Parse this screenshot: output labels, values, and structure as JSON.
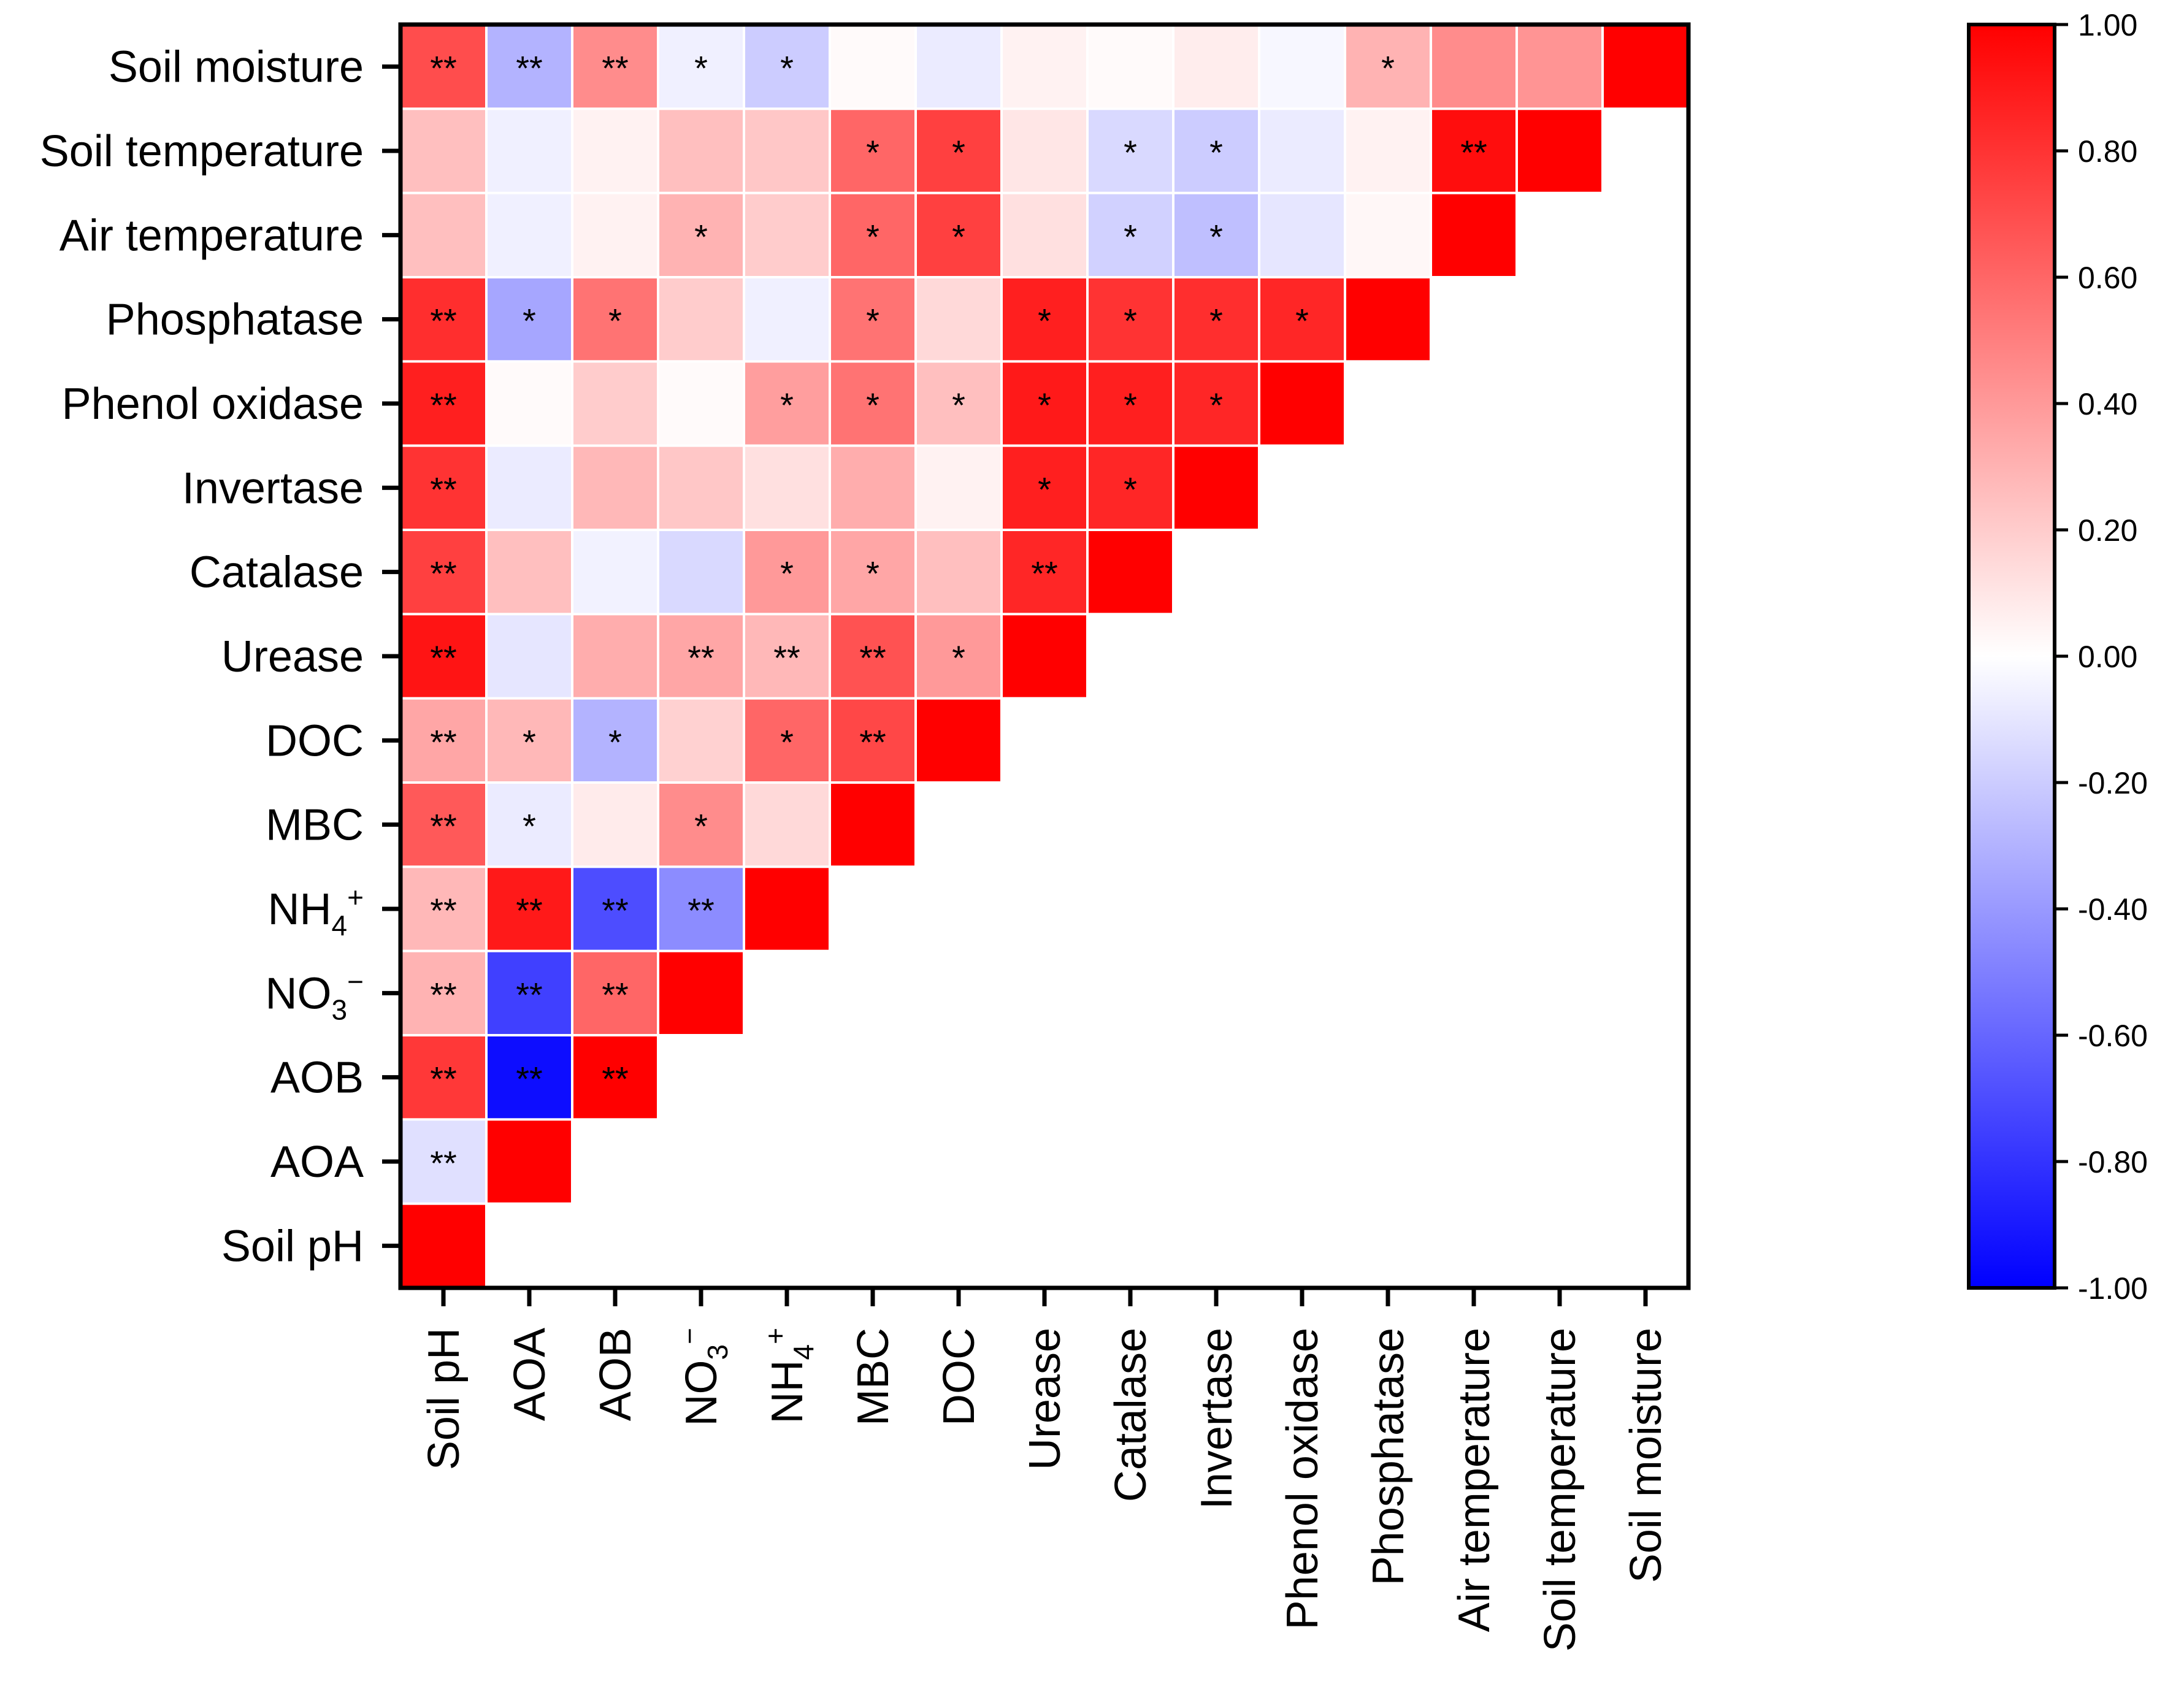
{
  "chart_data": {
    "type": "heatmap",
    "title": "",
    "xlabel": "",
    "ylabel": "",
    "variables": [
      {
        "main": "Soil pH",
        "sub": "",
        "sup": ""
      },
      {
        "main": "AOA",
        "sub": "",
        "sup": ""
      },
      {
        "main": "AOB",
        "sub": "",
        "sup": ""
      },
      {
        "main": "NO",
        "sub": "3",
        "sup": "−"
      },
      {
        "main": "NH",
        "sub": "4",
        "sup": "+"
      },
      {
        "main": "MBC",
        "sub": "",
        "sup": ""
      },
      {
        "main": "DOC",
        "sub": "",
        "sup": ""
      },
      {
        "main": "Urease",
        "sub": "",
        "sup": ""
      },
      {
        "main": "Catalase",
        "sub": "",
        "sup": ""
      },
      {
        "main": "Invertase",
        "sub": "",
        "sup": ""
      },
      {
        "main": "Phenol oxidase",
        "sub": "",
        "sup": ""
      },
      {
        "main": "Phosphatase",
        "sub": "",
        "sup": ""
      },
      {
        "main": "Air temperature",
        "sub": "",
        "sup": ""
      },
      {
        "main": "Soil temperature",
        "sub": "",
        "sup": ""
      },
      {
        "main": "Soil moisture",
        "sub": "",
        "sup": ""
      }
    ],
    "rows": [
      {
        "values": [
          1.0
        ]
      },
      {
        "values": [
          -0.12,
          1.0
        ],
        "sig": [
          "**",
          ""
        ]
      },
      {
        "values": [
          0.78,
          -0.95,
          1.0
        ],
        "sig": [
          "**",
          "**",
          "**"
        ]
      },
      {
        "values": [
          0.3,
          -0.75,
          0.6,
          1.0
        ],
        "sig": [
          "**",
          "**",
          "**",
          ""
        ]
      },
      {
        "values": [
          0.28,
          0.9,
          -0.7,
          -0.45,
          1.0
        ],
        "sig": [
          "**",
          "**",
          "**",
          "**",
          ""
        ]
      },
      {
        "values": [
          0.65,
          -0.08,
          0.08,
          0.45,
          0.15,
          1.0
        ],
        "sig": [
          "**",
          "*",
          "",
          "*",
          "",
          ""
        ]
      },
      {
        "values": [
          0.35,
          0.28,
          -0.3,
          0.18,
          0.6,
          0.72,
          1.0
        ],
        "sig": [
          "**",
          "*",
          "*",
          "",
          "*",
          "**",
          ""
        ]
      },
      {
        "values": [
          0.92,
          -0.1,
          0.32,
          0.35,
          0.28,
          0.68,
          0.4,
          1.0
        ],
        "sig": [
          "**",
          "",
          "",
          "**",
          "**",
          "**",
          "*",
          ""
        ]
      },
      {
        "values": [
          0.75,
          0.25,
          -0.05,
          -0.15,
          0.4,
          0.35,
          0.25,
          0.85,
          1.0
        ],
        "sig": [
          "**",
          "",
          "",
          "",
          "*",
          "*",
          "",
          "**",
          ""
        ]
      },
      {
        "values": [
          0.8,
          -0.08,
          0.28,
          0.22,
          0.12,
          0.32,
          0.05,
          0.88,
          0.85,
          1.0
        ],
        "sig": [
          "**",
          "",
          "",
          "",
          "",
          "",
          "",
          "*",
          "*",
          ""
        ]
      },
      {
        "values": [
          0.88,
          0.02,
          0.2,
          0.02,
          0.38,
          0.55,
          0.25,
          0.9,
          0.88,
          0.85,
          1.0
        ],
        "sig": [
          "**",
          "",
          "",
          "",
          "*",
          "*",
          "*",
          "*",
          "*",
          "*",
          ""
        ]
      },
      {
        "values": [
          0.82,
          -0.35,
          0.55,
          0.2,
          -0.06,
          0.55,
          0.15,
          0.88,
          0.8,
          0.82,
          0.85,
          1.0
        ],
        "sig": [
          "**",
          "*",
          "*",
          "",
          "",
          "*",
          "",
          "*",
          "*",
          "*",
          "*",
          ""
        ]
      },
      {
        "values": [
          0.25,
          -0.06,
          0.05,
          0.3,
          0.2,
          0.6,
          0.75,
          0.12,
          -0.18,
          -0.25,
          -0.1,
          0.03,
          1.0
        ],
        "sig": [
          "",
          "",
          "",
          "*",
          "",
          "*",
          "*",
          "",
          "*",
          "*",
          "",
          "",
          ""
        ]
      },
      {
        "values": [
          0.25,
          -0.06,
          0.05,
          0.25,
          0.22,
          0.6,
          0.75,
          0.1,
          -0.15,
          -0.2,
          -0.08,
          0.05,
          0.95,
          1.0
        ],
        "sig": [
          "",
          "",
          "",
          "",
          "",
          "*",
          "*",
          "",
          "*",
          "*",
          "",
          "",
          "**",
          ""
        ]
      },
      {
        "values": [
          0.7,
          -0.3,
          0.45,
          -0.06,
          -0.2,
          0.02,
          -0.08,
          0.05,
          0.02,
          0.07,
          -0.03,
          0.3,
          0.45,
          0.42,
          1.0
        ],
        "sig": [
          "**",
          "**",
          "**",
          "*",
          "*",
          "",
          "",
          "",
          "",
          "",
          "",
          "*",
          "",
          "",
          ""
        ]
      }
    ],
    "colorbar": {
      "range": [
        -1.0,
        1.0
      ],
      "ticks": [
        "1.00",
        "0.80",
        "0.60",
        "0.40",
        "0.20",
        "0.00",
        "-0.20",
        "-0.40",
        "-0.60",
        "-0.80",
        "-1.00"
      ],
      "colors": {
        "negative": "#0000ff",
        "zero": "#ffffff",
        "positive": "#ff0000"
      }
    }
  }
}
